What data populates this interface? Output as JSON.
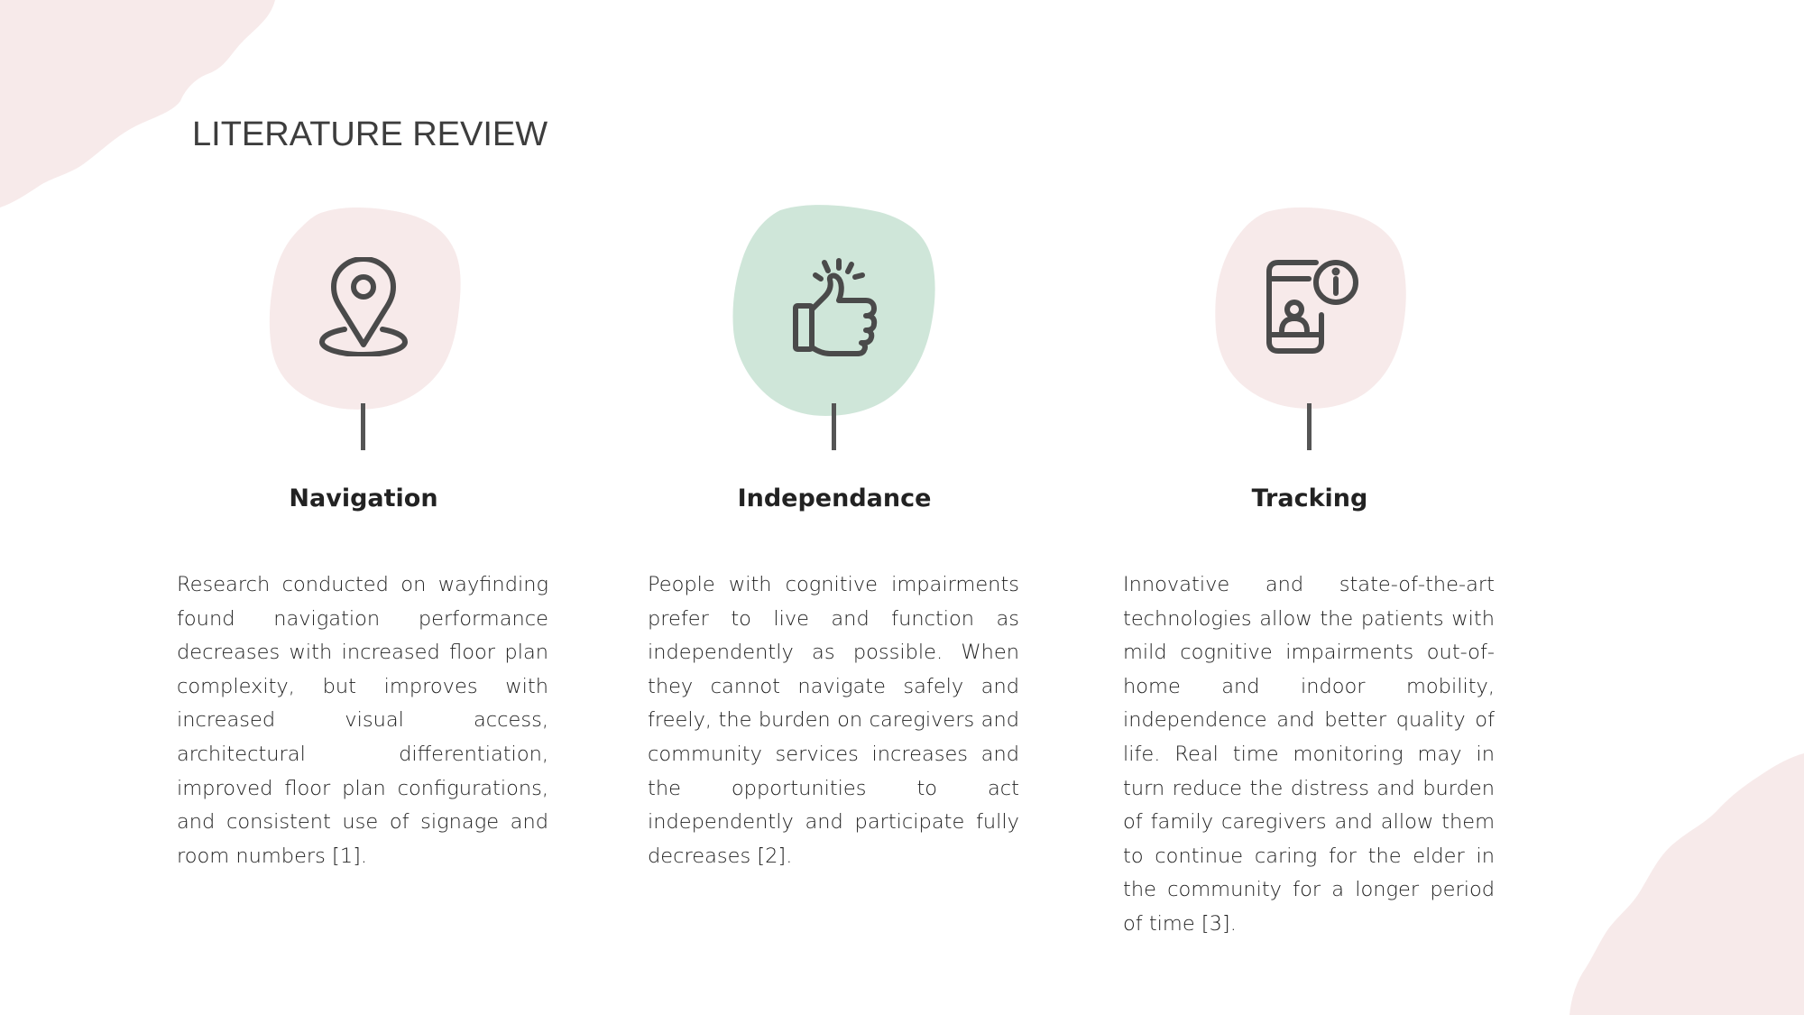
{
  "slide": {
    "title": "LITERATURE REVIEW",
    "colors": {
      "pink_blob": "#f7eaea",
      "green_blob": "#cfe6d9",
      "icon_stroke": "#4a4a4a",
      "stem": "#555555",
      "title_text": "#3d3d3d"
    }
  },
  "columns": [
    {
      "icon": "map-pin-icon",
      "blob_color": "pink",
      "heading": "Navigation",
      "text": "Research conducted on wayfinding found navigation performance decreases with increased floor plan complexity, but improves with increased visual access, architectural differentiation, improved floor plan configurations, and consistent use of signage and room numbers [1]."
    },
    {
      "icon": "thumbs-up-icon",
      "blob_color": "green",
      "heading": "Independance",
      "text": "People with cognitive impairments prefer to live and function as independently as possible. When they cannot navigate safely and freely, the burden on caregivers and community services increases and the opportunities to act independently and participate fully decreases [2]."
    },
    {
      "icon": "phone-info-icon",
      "blob_color": "pink",
      "heading": "Tracking",
      "text": "Innovative and state-of-the-art technologies allow the patients with mild cognitive impairments out-of-home and indoor mobility, independence and better quality of life. Real time monitoring may in turn reduce the distress and burden of family caregivers and allow them to continue caring for the elder in the community for a longer period of time [3]."
    }
  ]
}
